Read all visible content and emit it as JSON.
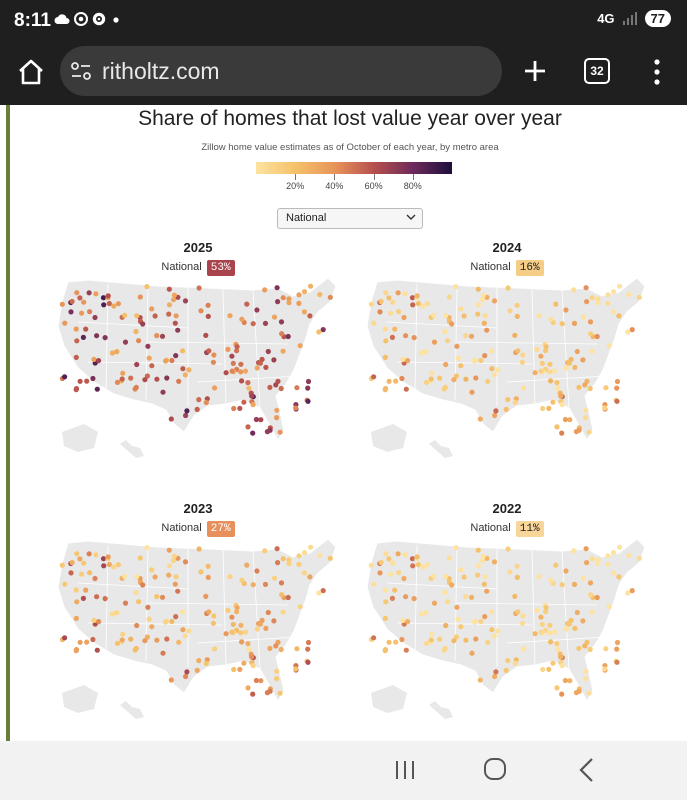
{
  "status_bar": {
    "time": "8:11",
    "network": "4G",
    "battery": "77",
    "icons": [
      "cloud-icon",
      "chrome-icon",
      "vpn-icon",
      "dot-icon",
      "signal-icon"
    ]
  },
  "browser": {
    "url": "ritholtz.com",
    "tab_count": "32"
  },
  "figure": {
    "title": "Share of homes that lost value year over year",
    "subtitle": "Zillow home value estimates as of October of each year, by metro area",
    "legend": {
      "ticks": [
        "20%",
        "40%",
        "60%",
        "80%"
      ],
      "tick_values": [
        0.2,
        0.4,
        0.6,
        0.8
      ],
      "colors": [
        "#fde2a0",
        "#f5c26b",
        "#e8955a",
        "#b6504d",
        "#6d2a5c",
        "#1c0f3d"
      ]
    },
    "selector": {
      "selected": "National"
    },
    "panels": [
      {
        "year": "2025",
        "label": "National",
        "value": "53%",
        "share": 0.53,
        "badge_color": "#a9444c",
        "badge_text_color": "#ffffff"
      },
      {
        "year": "2024",
        "label": "National",
        "value": "16%",
        "share": 0.16,
        "badge_color": "#f6cd86",
        "badge_text_color": "#222222"
      },
      {
        "year": "2023",
        "label": "National",
        "value": "27%",
        "share": 0.27,
        "badge_color": "#e7905b",
        "badge_text_color": "#ffffff"
      },
      {
        "year": "2022",
        "label": "National",
        "value": "11%",
        "share": 0.11,
        "badge_color": "#f8d69a",
        "badge_text_color": "#222222"
      }
    ]
  },
  "nav_bar": {
    "icons": [
      "recents-icon",
      "home-icon",
      "back-icon"
    ]
  }
}
